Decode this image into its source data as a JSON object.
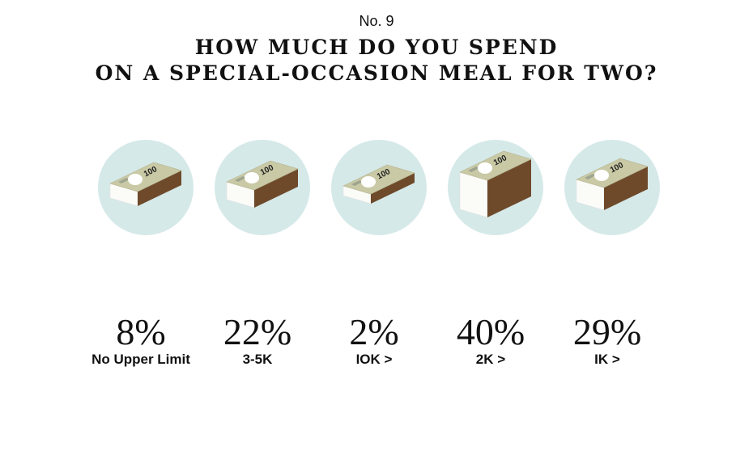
{
  "header": {
    "number": "No. 9",
    "title_lines": [
      "HOW MUCH DO YOU SPEND",
      "ON A SPECIAL-OCCASION MEAL FOR TWO?"
    ]
  },
  "banknote_label": "100",
  "items": [
    {
      "percent": "8%",
      "label": "No Upper Limit"
    },
    {
      "percent": "22%",
      "label": "3-5K"
    },
    {
      "percent": "2%",
      "label": "IOK >"
    },
    {
      "percent": "40%",
      "label": "2K >"
    },
    {
      "percent": "29%",
      "label": "IK >"
    }
  ]
}
